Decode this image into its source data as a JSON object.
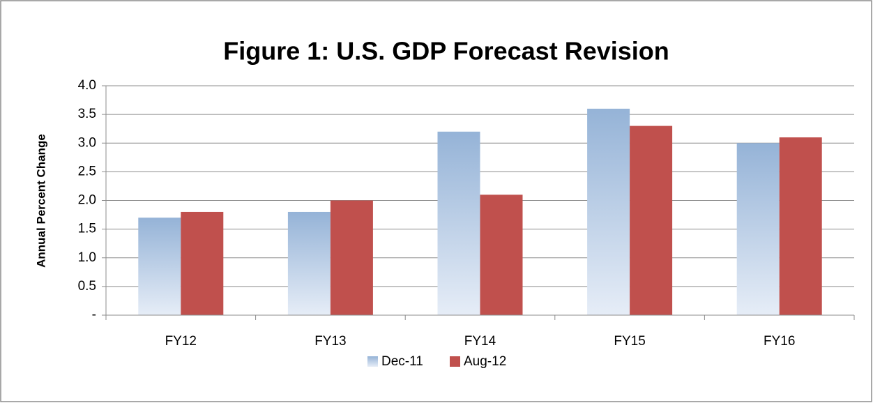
{
  "chart_data": {
    "type": "bar",
    "title": "Figure 1: U.S. GDP Forecast Revision",
    "y_label": "Annual Percent Change",
    "categories": [
      "FY12",
      "FY13",
      "FY14",
      "FY15",
      "FY16"
    ],
    "series": [
      {
        "name": "Dec-11",
        "color": "#95b3d7",
        "values": [
          1.7,
          1.8,
          3.2,
          3.6,
          3.0
        ]
      },
      {
        "name": "Aug-12",
        "color": "#c0504d",
        "values": [
          1.8,
          2.0,
          2.1,
          3.3,
          3.1
        ]
      }
    ],
    "ylim": [
      0,
      4
    ],
    "yticks": [
      {
        "value": 0,
        "label": "-"
      },
      {
        "value": 0.5,
        "label": "0.5"
      },
      {
        "value": 1,
        "label": "1.0"
      },
      {
        "value": 1.5,
        "label": "1.5"
      },
      {
        "value": 2,
        "label": "2.0"
      },
      {
        "value": 2.5,
        "label": "2.5"
      },
      {
        "value": 3,
        "label": "3.0"
      },
      {
        "value": 3.5,
        "label": "3.5"
      },
      {
        "value": 4,
        "label": "4.0"
      }
    ],
    "grid": true,
    "legend": "bottom"
  }
}
